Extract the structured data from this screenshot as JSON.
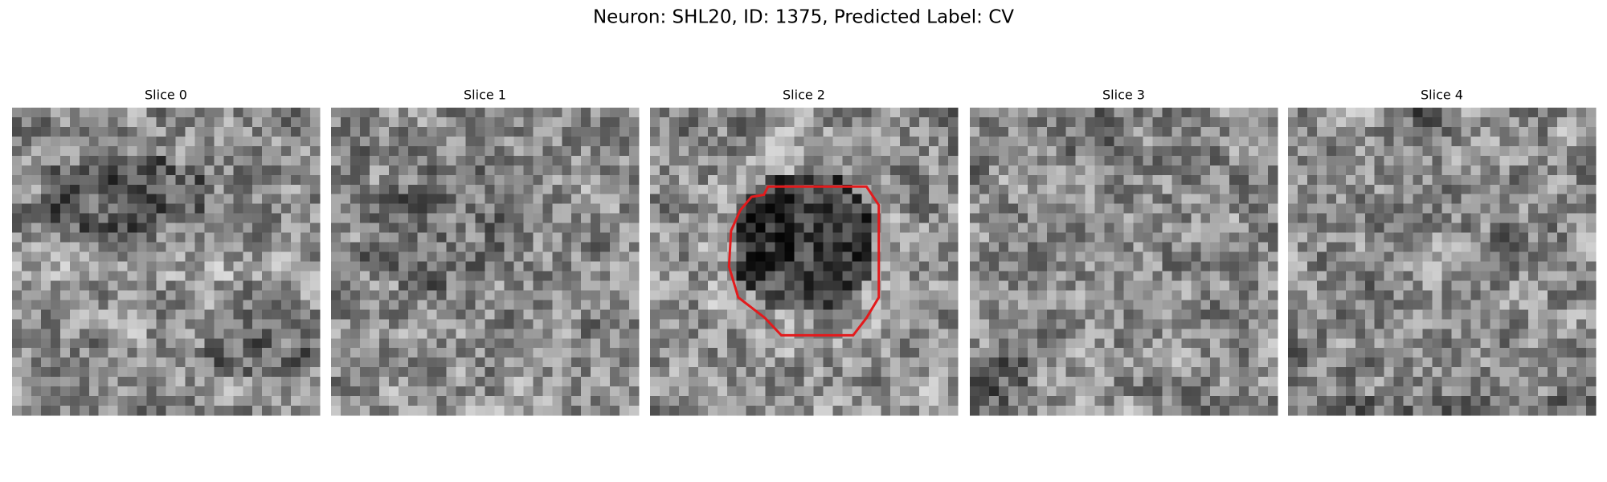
{
  "title": "Neuron: SHL20, ID: 1375, Predicted Label: CV",
  "panels": [
    {
      "title": "Slice 0"
    },
    {
      "title": "Slice 1"
    },
    {
      "title": "Slice 2"
    },
    {
      "title": "Slice 3"
    },
    {
      "title": "Slice 4"
    }
  ]
}
